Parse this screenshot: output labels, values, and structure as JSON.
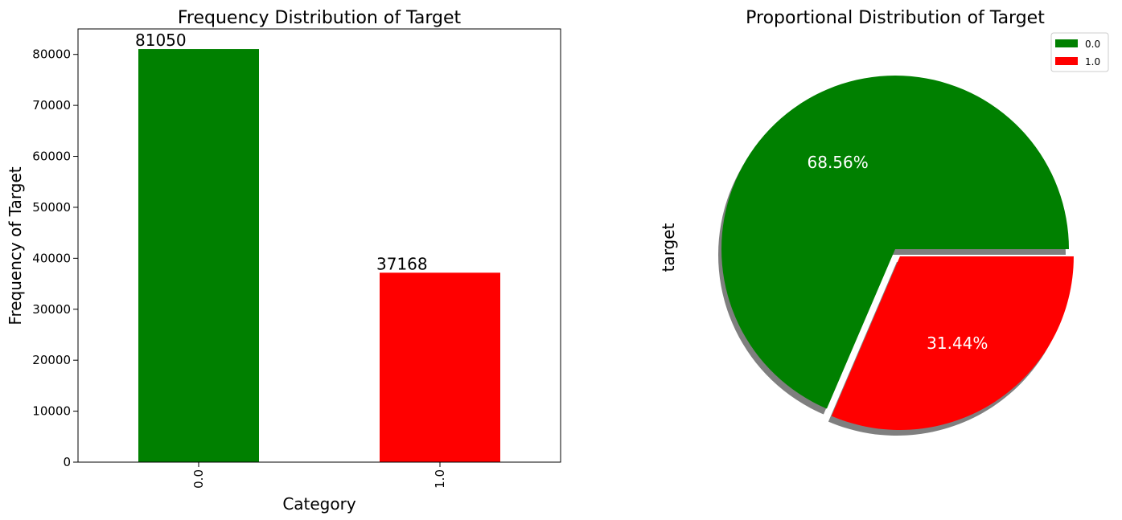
{
  "chart_data": [
    {
      "type": "bar",
      "title": "Frequency Distribution of Target",
      "xlabel": "Category",
      "ylabel": "Frequency of Target",
      "categories": [
        "0.0",
        "1.0"
      ],
      "values": [
        81050,
        37168
      ],
      "data_labels": [
        "81050",
        "37168"
      ],
      "colors": [
        "#008000",
        "#ff0000"
      ],
      "ylim": [
        0,
        85000
      ],
      "yticks": [
        0,
        10000,
        20000,
        30000,
        40000,
        50000,
        60000,
        70000,
        80000
      ],
      "ytick_labels": [
        "0",
        "10000",
        "20000",
        "30000",
        "40000",
        "50000",
        "60000",
        "70000",
        "80000"
      ],
      "xtick_labels": [
        "0.0",
        "1.0"
      ],
      "xtick_rotation": "vertical",
      "grid": false
    },
    {
      "type": "pie",
      "title": "Proportional Distribution of Target",
      "ylabel": "target",
      "labels": [
        "0.0",
        "1.0"
      ],
      "values": [
        68.56,
        31.44
      ],
      "pct_labels": [
        "68.56%",
        "31.44%"
      ],
      "colors": [
        "#008000",
        "#ff0000"
      ],
      "explode": [
        0,
        0.05
      ],
      "shadow": true,
      "legend_position": "top-right"
    }
  ]
}
